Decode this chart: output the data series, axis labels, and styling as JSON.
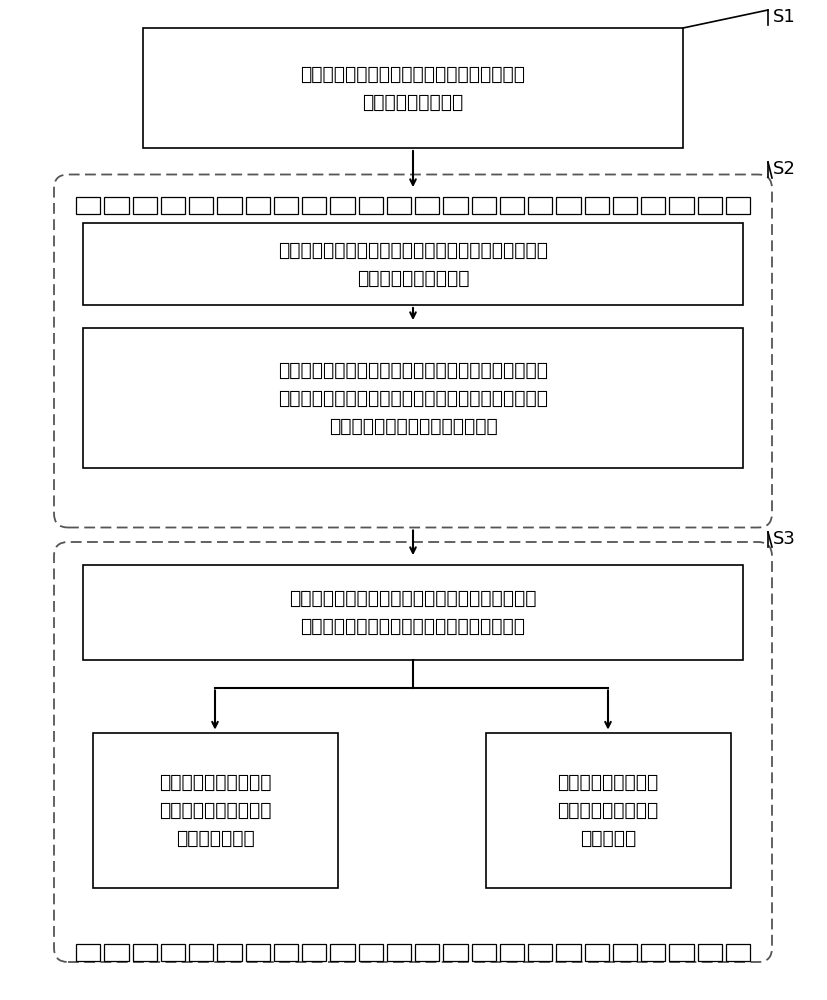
{
  "bg_color": "#ffffff",
  "box_color": "#ffffff",
  "box_edge_color": "#000000",
  "dashed_box_color": "#ffffff",
  "dashed_box_edge_color": "#555555",
  "text_color": "#000000",
  "arrow_color": "#000000",
  "s1_label": "S1",
  "s2_label": "S2",
  "s3_label": "S3",
  "box1_text": "规格化土与风机基础动力相互作用的振动阻抗\n并将其表示成动柔度",
  "box2_text": "利用切比雪夫复多项式拟合规格化的动柔度函数，将其\n表示成递归函数的形式",
  "box3_text": "建立递归物理模型的动柔度表达式，通过与基于切比雪\n夫复多项式的递归函数表达式对比，确定所述递归物理\n模型中各弹簧和阻尼器的待定系数",
  "box4_text": "建立考虑土与风机动力相互作用的等效时域模型，\n根据达朗贝尔原理建立该系统的运动控制方程",
  "box5_text": "利用逐步积分法求解运\n动控制方程即可得到系\n统时域动力响应",
  "box6_text": "对运动控制方程做复\n模态分析即可得到系\n统特征频率",
  "font_size_main": 13.5,
  "font_size_s": 13
}
